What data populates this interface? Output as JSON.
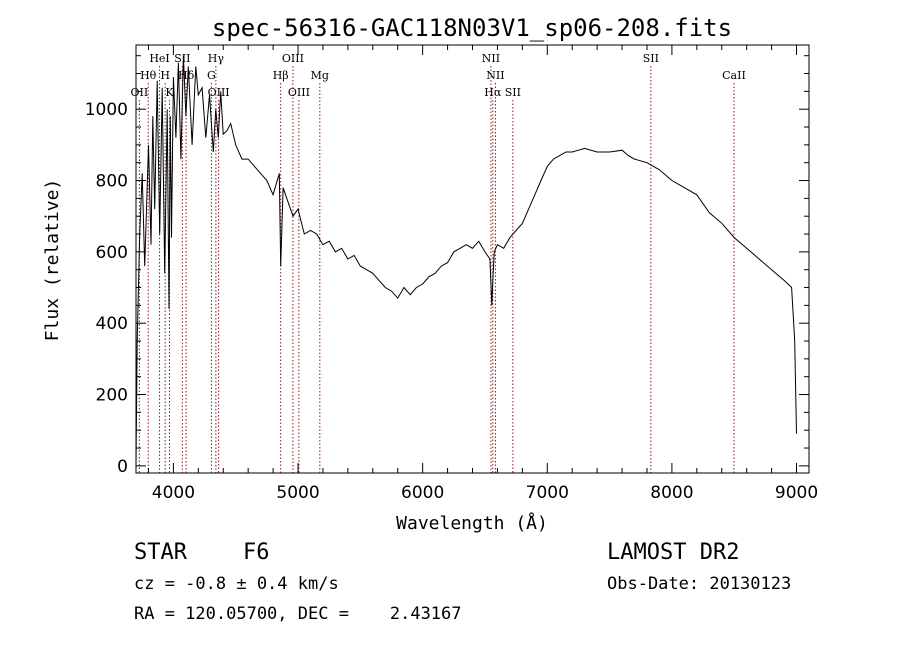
{
  "chart_data": {
    "type": "line",
    "title": "spec-56316-GAC118N03V1_sp06-208.fits",
    "xlabel": "Wavelength (Å)",
    "ylabel": "Flux (relative)",
    "xlim": [
      3700,
      9100
    ],
    "ylim": [
      -20,
      1180
    ],
    "xticks": [
      4000,
      5000,
      6000,
      7000,
      8000,
      9000
    ],
    "yticks": [
      0,
      200,
      400,
      600,
      800,
      1000
    ],
    "grid": false,
    "line_color": "#000000",
    "marker_color": "#8b1a1a",
    "series": [
      {
        "x": [
          3700,
          3710,
          3730,
          3750,
          3770,
          3800,
          3820,
          3835,
          3850,
          3870,
          3890,
          3910,
          3930,
          3950,
          3965,
          3975,
          3985,
          4000,
          4020,
          4040,
          4060,
          4080,
          4100,
          4120,
          4150,
          4180,
          4200,
          4230,
          4260,
          4290,
          4320,
          4340,
          4360,
          4380,
          4400,
          4430,
          4460,
          4500,
          4550,
          4600,
          4650,
          4700,
          4750,
          4800,
          4850,
          4861,
          4880,
          4920,
          4960,
          5000,
          5050,
          5100,
          5150,
          5200,
          5250,
          5300,
          5350,
          5400,
          5450,
          5500,
          5550,
          5600,
          5650,
          5700,
          5750,
          5800,
          5850,
          5900,
          5950,
          6000,
          6050,
          6100,
          6150,
          6200,
          6250,
          6300,
          6350,
          6400,
          6450,
          6500,
          6540,
          6555,
          6563,
          6575,
          6600,
          6650,
          6700,
          6750,
          6800,
          6850,
          6900,
          6950,
          7000,
          7050,
          7100,
          7150,
          7200,
          7250,
          7300,
          7400,
          7500,
          7600,
          7650,
          7700,
          7800,
          7900,
          8000,
          8100,
          8200,
          8300,
          8400,
          8500,
          8600,
          8700,
          8800,
          8900,
          8960,
          8985,
          9000
        ],
        "y": [
          0,
          350,
          650,
          820,
          560,
          900,
          620,
          980,
          720,
          1080,
          650,
          1060,
          540,
          1000,
          440,
          980,
          640,
          1090,
          920,
          1130,
          860,
          1150,
          980,
          1120,
          900,
          1120,
          1040,
          1060,
          920,
          1040,
          880,
          1000,
          920,
          1050,
          930,
          940,
          960,
          900,
          860,
          860,
          840,
          820,
          800,
          760,
          820,
          560,
          780,
          740,
          700,
          720,
          650,
          660,
          650,
          620,
          630,
          600,
          610,
          580,
          590,
          560,
          550,
          540,
          520,
          500,
          490,
          470,
          500,
          480,
          500,
          510,
          530,
          540,
          560,
          570,
          600,
          610,
          620,
          610,
          630,
          600,
          580,
          450,
          520,
          600,
          620,
          610,
          640,
          660,
          680,
          720,
          760,
          800,
          840,
          860,
          870,
          880,
          880,
          885,
          890,
          880,
          880,
          885,
          870,
          860,
          850,
          830,
          800,
          780,
          760,
          710,
          680,
          640,
          610,
          580,
          550,
          520,
          500,
          350,
          90
        ]
      }
    ],
    "line_markers": [
      {
        "label": "OII",
        "x": 3727,
        "row": 3
      },
      {
        "label": "Hθ",
        "x": 3798,
        "row": 2
      },
      {
        "label": "HeI",
        "x": 3889,
        "row": 1
      },
      {
        "label": "H",
        "x": 3934,
        "row": 2
      },
      {
        "label": "K",
        "x": 3969,
        "row": 3
      },
      {
        "label": "SII",
        "x": 4072,
        "row": 1
      },
      {
        "label": "Hδ",
        "x": 4102,
        "row": 2
      },
      {
        "label": "Hγ",
        "x": 4341,
        "row": 1
      },
      {
        "label": "G",
        "x": 4305,
        "row": 2
      },
      {
        "label": "OIII",
        "x": 4363,
        "row": 3
      },
      {
        "label": "Hβ",
        "x": 4861,
        "row": 2
      },
      {
        "label": "OIII",
        "x": 4959,
        "row": 1
      },
      {
        "label": "OIII",
        "x": 5007,
        "row": 3
      },
      {
        "label": "Mg",
        "x": 5175,
        "row": 2
      },
      {
        "label": "NII",
        "x": 6548,
        "row": 1
      },
      {
        "label": "NII",
        "x": 6584,
        "row": 2
      },
      {
        "label": "Hα",
        "x": 6563,
        "row": 3
      },
      {
        "label": "SII",
        "x": 6724,
        "row": 3
      },
      {
        "label": "SII",
        "x": 7831,
        "row": 1
      },
      {
        "label": "CaII",
        "x": 8498,
        "row": 2
      }
    ]
  },
  "info": {
    "object_class": "STAR",
    "subclass": "F6",
    "survey": "LAMOST DR2",
    "redshift": "cz = -0.8 ± 0.4 km/s",
    "obs_date": "Obs-Date: 20130123",
    "coords": "RA = 120.05700, DEC =    2.43167"
  }
}
